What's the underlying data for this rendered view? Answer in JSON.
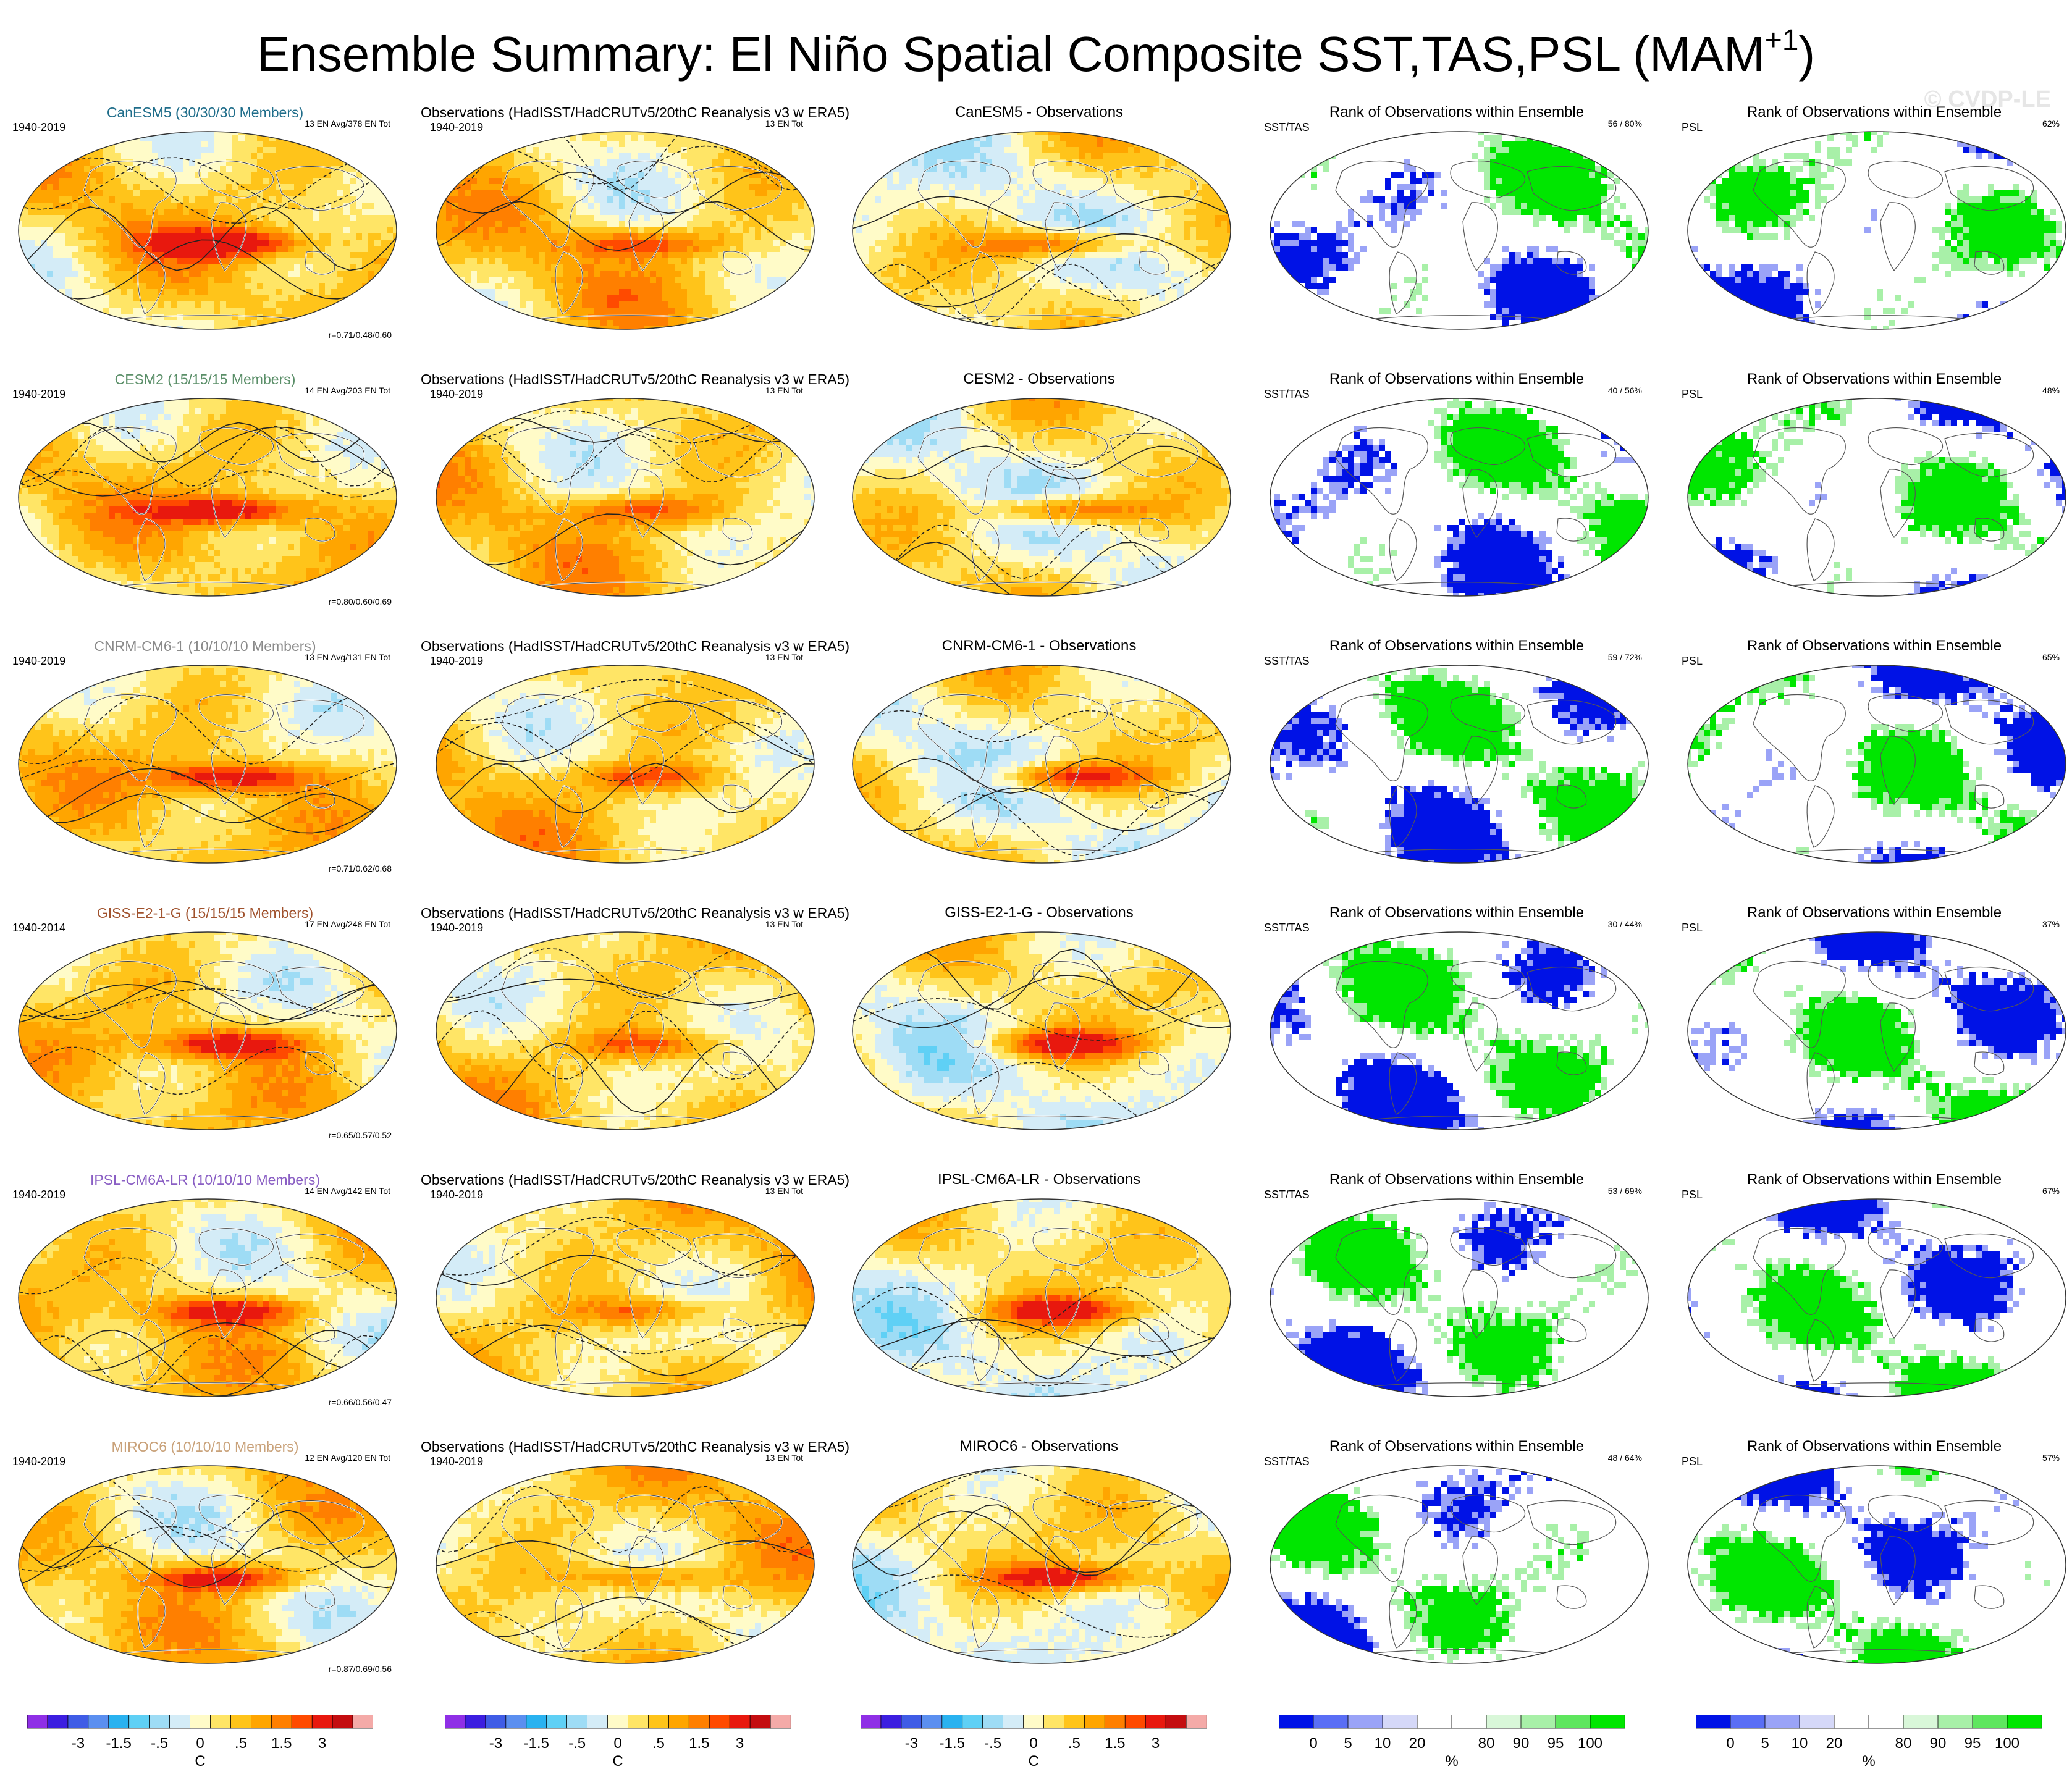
{
  "title_main": "Ensemble Summary: El Niño Spatial Composite SST,TAS,PSL (MAM",
  "title_sup": "+1",
  "title_end": ")",
  "watermark": "© CVDP-LE",
  "colors": {
    "model_title_colors": [
      "#1f6d8a",
      "#5b8f69",
      "#8a8a8a",
      "#a0522d",
      "#8a5fc4",
      "#c9a27a"
    ],
    "diverging_scale": [
      "#8f2fe6",
      "#3c1ee0",
      "#3f5ce6",
      "#5b8ff0",
      "#29b2f0",
      "#5fd0f5",
      "#9edcf5",
      "#d4ecf7",
      "#fffbc8",
      "#ffe566",
      "#ffc41a",
      "#ffa500",
      "#ff7f00",
      "#ff4a00",
      "#e8180e",
      "#c40d10",
      "#f4aaa8"
    ],
    "rank_scale": [
      "#0012e6",
      "#5a6ef5",
      "#9aa3f7",
      "#d5d8f8",
      "#ffffff",
      "#ffffff",
      "#d9f7d9",
      "#a8f0a8",
      "#5ee65e",
      "#00e600"
    ]
  },
  "rows": [
    {
      "model": "CanESM5",
      "members": "CanESM5 (30/30/30 Members)",
      "period": "1940-2019",
      "avg": "13 EN Avg/378 EN Tot",
      "corr": "r=0.71/0.48/0.60",
      "diff": "CanESM5 - Observations",
      "rank": "56 /  80%",
      "psl_rank": "62%"
    },
    {
      "model": "CESM2",
      "members": "CESM2 (15/15/15 Members)",
      "period": "1940-2019",
      "avg": "14 EN Avg/203 EN Tot",
      "corr": "r=0.80/0.60/0.69",
      "diff": "CESM2 - Observations",
      "rank": "40 /  56%",
      "psl_rank": "48%"
    },
    {
      "model": "CNRM-CM6-1",
      "members": "CNRM-CM6-1 (10/10/10 Members)",
      "period": "1940-2019",
      "avg": "13 EN Avg/131 EN Tot",
      "corr": "r=0.71/0.62/0.68",
      "diff": "CNRM-CM6-1 - Observations",
      "rank": "59 /  72%",
      "psl_rank": "65%"
    },
    {
      "model": "GISS-E2-1-G",
      "members": "GISS-E2-1-G (15/15/15 Members)",
      "period": "1940-2014",
      "avg": "17 EN Avg/248 EN Tot",
      "corr": "r=0.65/0.57/0.52",
      "diff": "GISS-E2-1-G - Observations",
      "rank": "30 /  44%",
      "psl_rank": "37%"
    },
    {
      "model": "IPSL-CM6A-LR",
      "members": "IPSL-CM6A-LR (10/10/10 Members)",
      "period": "1940-2019",
      "avg": "14 EN Avg/142 EN Tot",
      "corr": "r=0.66/0.56/0.47",
      "diff": "IPSL-CM6A-LR - Observations",
      "rank": "53 /  69%",
      "psl_rank": "67%"
    },
    {
      "model": "MIROC6",
      "members": "MIROC6 (10/10/10 Members)",
      "period": "1940-2019",
      "avg": "12 EN Avg/120 EN Tot",
      "corr": "r=0.87/0.69/0.56",
      "diff": "MIROC6 - Observations",
      "rank": "48 /  64%",
      "psl_rank": "57%"
    }
  ],
  "obs": {
    "title": "Observations (HadISST/HadCRUTv5/20thC Reanalysis v3 w ERA5)",
    "period": "1940-2019",
    "tot": "13 EN Tot"
  },
  "rank_panel": {
    "title": "Rank of Observations within Ensemble",
    "sst_label": "SST/TAS",
    "psl_label": "PSL"
  },
  "chart_data": [
    {
      "type": "heatmap",
      "title": "Ensemble Summary: El Niño Spatial Composite SST,TAS,PSL (MAM+1)",
      "colorbar": "temperature composite",
      "unit": "C",
      "tick_labels": [
        "-3",
        "-1.5",
        "-.5",
        "0",
        ".5",
        "1.5",
        "3"
      ],
      "levels": [
        -4,
        -3,
        -2,
        -1.5,
        -1,
        -0.5,
        -0.25,
        0,
        0.25,
        0.5,
        1,
        1.5,
        2,
        3,
        4
      ]
    },
    {
      "type": "heatmap",
      "title": "Rank of Observations within Ensemble",
      "unit": "%",
      "tick_labels": [
        "0",
        "5",
        "10",
        "20",
        "80",
        "90",
        "95",
        "100"
      ],
      "levels": [
        0,
        5,
        10,
        20,
        80,
        90,
        95,
        100
      ]
    }
  ],
  "cb": {
    "temp_ticks": [
      "-3",
      "-1.5",
      "-.5",
      "0",
      ".5",
      "1.5",
      "3"
    ],
    "temp_unit": "C",
    "rank_ticks": [
      "0",
      "5",
      "10",
      "20",
      "80",
      "90",
      "95",
      "100"
    ],
    "rank_unit": "%"
  }
}
